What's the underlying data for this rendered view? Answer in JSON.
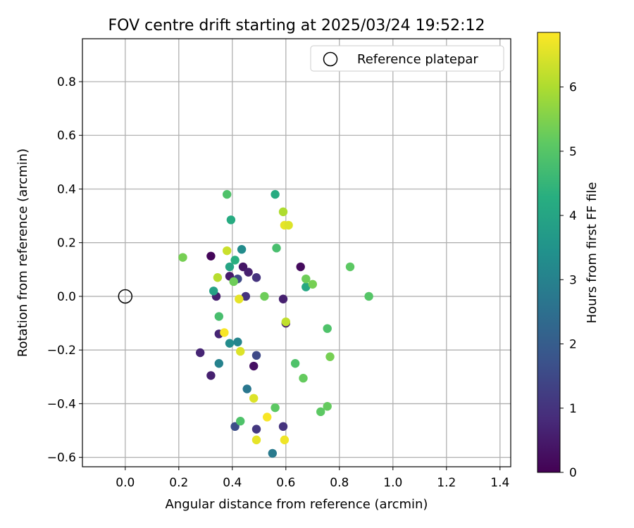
{
  "chart_data": {
    "type": "scatter",
    "title": "FOV centre drift starting at 2025/03/24 19:52:12",
    "xlabel": "Angular distance from reference (arcmin)",
    "ylabel": "Rotation from reference (arcmin)",
    "xlim": [
      -0.16,
      1.44
    ],
    "ylim": [
      -0.635,
      0.96
    ],
    "xticks": [
      0.0,
      0.2,
      0.4,
      0.6,
      0.8,
      1.0,
      1.2,
      1.4
    ],
    "yticks": [
      -0.6,
      -0.4,
      -0.2,
      0.0,
      0.2,
      0.4,
      0.6,
      0.8
    ],
    "grid": true,
    "legend": {
      "location": "top-right",
      "entries": [
        "Reference platepar"
      ]
    },
    "reference_point": {
      "x": 0.0,
      "y": 0.0,
      "label": "Reference platepar"
    },
    "colorbar": {
      "label": "Hours from first FF file",
      "colormap": "viridis",
      "range": [
        0,
        6.85
      ],
      "ticks": [
        0,
        1,
        2,
        3,
        4,
        5,
        6
      ]
    },
    "points": [
      {
        "x": 0.32,
        "y": 0.15,
        "hours": 0.1
      },
      {
        "x": 0.34,
        "y": 0.0,
        "hours": 0.6
      },
      {
        "x": 0.35,
        "y": -0.14,
        "hours": 0.7
      },
      {
        "x": 0.28,
        "y": -0.21,
        "hours": 0.7
      },
      {
        "x": 0.32,
        "y": -0.295,
        "hours": 0.6
      },
      {
        "x": 0.39,
        "y": 0.075,
        "hours": 0.5
      },
      {
        "x": 0.42,
        "y": 0.065,
        "hours": 1.5
      },
      {
        "x": 0.44,
        "y": 0.11,
        "hours": 0.4
      },
      {
        "x": 0.46,
        "y": 0.09,
        "hours": 0.6
      },
      {
        "x": 0.45,
        "y": 0.0,
        "hours": 1.0
      },
      {
        "x": 0.49,
        "y": 0.07,
        "hours": 1.0
      },
      {
        "x": 0.48,
        "y": -0.26,
        "hours": 0.3
      },
      {
        "x": 0.49,
        "y": -0.22,
        "hours": 1.5
      },
      {
        "x": 0.49,
        "y": -0.495,
        "hours": 1.1
      },
      {
        "x": 0.41,
        "y": -0.485,
        "hours": 1.6
      },
      {
        "x": 0.59,
        "y": -0.01,
        "hours": 0.6
      },
      {
        "x": 0.6,
        "y": -0.1,
        "hours": 0.5
      },
      {
        "x": 0.59,
        "y": -0.485,
        "hours": 1.0
      },
      {
        "x": 0.655,
        "y": 0.11,
        "hours": 0.2
      },
      {
        "x": 0.55,
        "y": -0.585,
        "hours": 2.8
      },
      {
        "x": 0.455,
        "y": -0.345,
        "hours": 2.7
      },
      {
        "x": 0.35,
        "y": -0.25,
        "hours": 3.0
      },
      {
        "x": 0.39,
        "y": -0.175,
        "hours": 3.3
      },
      {
        "x": 0.42,
        "y": -0.17,
        "hours": 3.1
      },
      {
        "x": 0.435,
        "y": 0.175,
        "hours": 3.3
      },
      {
        "x": 0.33,
        "y": 0.02,
        "hours": 3.9
      },
      {
        "x": 0.39,
        "y": 0.11,
        "hours": 4.0
      },
      {
        "x": 0.41,
        "y": 0.135,
        "hours": 4.3
      },
      {
        "x": 0.395,
        "y": 0.285,
        "hours": 4.2
      },
      {
        "x": 0.56,
        "y": 0.38,
        "hours": 4.2
      },
      {
        "x": 0.675,
        "y": 0.035,
        "hours": 4.1
      },
      {
        "x": 0.38,
        "y": 0.38,
        "hours": 4.9
      },
      {
        "x": 0.565,
        "y": 0.18,
        "hours": 4.8
      },
      {
        "x": 0.35,
        "y": -0.075,
        "hours": 4.8
      },
      {
        "x": 0.755,
        "y": -0.12,
        "hours": 4.9
      },
      {
        "x": 0.52,
        "y": 0.0,
        "hours": 5.3
      },
      {
        "x": 0.405,
        "y": 0.055,
        "hours": 5.3
      },
      {
        "x": 0.43,
        "y": -0.465,
        "hours": 4.9
      },
      {
        "x": 0.56,
        "y": -0.415,
        "hours": 5.1
      },
      {
        "x": 0.635,
        "y": -0.25,
        "hours": 4.9
      },
      {
        "x": 0.665,
        "y": -0.305,
        "hours": 5.2
      },
      {
        "x": 0.675,
        "y": 0.065,
        "hours": 5.3
      },
      {
        "x": 0.7,
        "y": 0.045,
        "hours": 5.4
      },
      {
        "x": 0.73,
        "y": -0.43,
        "hours": 5.1
      },
      {
        "x": 0.755,
        "y": -0.41,
        "hours": 5.2
      },
      {
        "x": 0.765,
        "y": -0.225,
        "hours": 5.4
      },
      {
        "x": 0.84,
        "y": 0.11,
        "hours": 5.1
      },
      {
        "x": 0.91,
        "y": 0.0,
        "hours": 5.0
      },
      {
        "x": 0.215,
        "y": 0.145,
        "hours": 5.4
      },
      {
        "x": 0.59,
        "y": 0.315,
        "hours": 6.0
      },
      {
        "x": 0.38,
        "y": 0.17,
        "hours": 6.3
      },
      {
        "x": 0.345,
        "y": 0.07,
        "hours": 6.1
      },
      {
        "x": 0.6,
        "y": -0.095,
        "hours": 6.2
      },
      {
        "x": 0.43,
        "y": -0.205,
        "hours": 6.5
      },
      {
        "x": 0.48,
        "y": -0.38,
        "hours": 6.5
      },
      {
        "x": 0.595,
        "y": 0.265,
        "hours": 6.6
      },
      {
        "x": 0.61,
        "y": 0.265,
        "hours": 6.5
      },
      {
        "x": 0.425,
        "y": -0.01,
        "hours": 6.6
      },
      {
        "x": 0.37,
        "y": -0.135,
        "hours": 6.8
      },
      {
        "x": 0.53,
        "y": -0.45,
        "hours": 6.8
      },
      {
        "x": 0.49,
        "y": -0.535,
        "hours": 6.6
      },
      {
        "x": 0.595,
        "y": -0.535,
        "hours": 6.7
      }
    ]
  }
}
